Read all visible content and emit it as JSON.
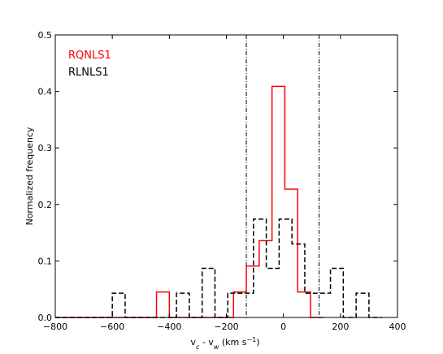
{
  "chart_data": {
    "type": "histogram",
    "xlabel": "v_c - v_w (km s^-1)",
    "ylabel": "Normalized frequency",
    "xlim": [
      -800,
      400
    ],
    "ylim": [
      0,
      0.5
    ],
    "xticks": [
      -800,
      -600,
      -400,
      -200,
      0,
      200,
      400
    ],
    "yticks": [
      0.0,
      0.1,
      0.2,
      0.3,
      0.4,
      0.5
    ],
    "xtick_labels": [
      "−800",
      "−600",
      "−400",
      "−200",
      "0",
      "200",
      "400"
    ],
    "ytick_labels": [
      "0.0",
      "0.1",
      "0.2",
      "0.3",
      "0.4",
      "0.5"
    ],
    "vlines": [
      -130,
      125
    ],
    "legend_position": "top-left",
    "series": [
      {
        "name": "RQNLS1",
        "color": "#ff0000",
        "style": "solid",
        "bin_edges": [
          -800,
          -760,
          -715,
          -670,
          -625,
          -580,
          -535,
          -490,
          -445,
          -400,
          -355,
          -310,
          -265,
          -220,
          -175,
          -130,
          -85,
          -40,
          5,
          50,
          95,
          140
        ],
        "values": [
          0,
          0,
          0,
          0,
          0,
          0,
          0,
          0,
          0.045,
          0,
          0,
          0,
          0,
          0,
          0.045,
          0.091,
          0.136,
          0.409,
          0.227,
          0.045,
          0
        ]
      },
      {
        "name": "RLNLS1",
        "color": "#000000",
        "style": "dashed",
        "bin_edges": [
          -800,
          -600,
          -555,
          -510,
          -465,
          -420,
          -375,
          -330,
          -285,
          -240,
          -195,
          -150,
          -105,
          -60,
          -15,
          30,
          75,
          120,
          165,
          210,
          255,
          300,
          345
        ],
        "values": [
          0,
          0.043,
          0,
          0,
          0,
          0,
          0.043,
          0,
          0.087,
          0,
          0.043,
          0.043,
          0.174,
          0.087,
          0.174,
          0.13,
          0.043,
          0.043,
          0.087,
          0,
          0.043,
          0
        ]
      }
    ]
  }
}
